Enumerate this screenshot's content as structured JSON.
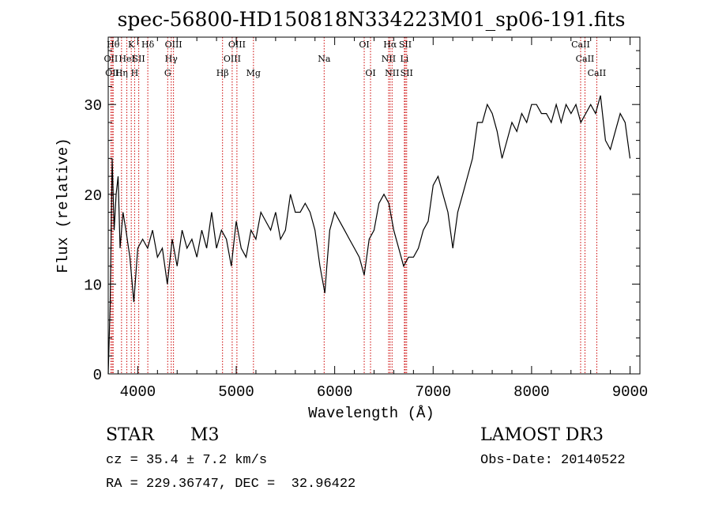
{
  "chart_data": {
    "type": "line",
    "title": "spec-56800-HD150818N334223M01_sp06-191.fits",
    "xlabel": "Wavelength (Å)",
    "ylabel": "Flux (relative)",
    "xlim": [
      3700,
      9100
    ],
    "ylim": [
      0,
      37.5
    ],
    "xticks": [
      4000,
      5000,
      6000,
      7000,
      8000,
      9000
    ],
    "yticks": [
      0,
      10,
      20,
      30
    ],
    "grid": false,
    "line_color": "#000000",
    "marker_color": "#cc0000",
    "x": [
      3700,
      3720,
      3740,
      3760,
      3780,
      3800,
      3820,
      3850,
      3880,
      3920,
      3960,
      4000,
      4050,
      4100,
      4150,
      4200,
      4250,
      4300,
      4350,
      4400,
      4450,
      4500,
      4550,
      4600,
      4650,
      4700,
      4750,
      4800,
      4850,
      4900,
      4950,
      5000,
      5050,
      5100,
      5150,
      5200,
      5250,
      5300,
      5350,
      5400,
      5450,
      5500,
      5550,
      5600,
      5650,
      5700,
      5750,
      5800,
      5850,
      5900,
      5920,
      5950,
      6000,
      6050,
      6100,
      6150,
      6200,
      6250,
      6300,
      6350,
      6400,
      6450,
      6500,
      6550,
      6600,
      6650,
      6700,
      6750,
      6800,
      6850,
      6900,
      6950,
      7000,
      7050,
      7100,
      7150,
      7200,
      7250,
      7300,
      7350,
      7400,
      7450,
      7500,
      7550,
      7600,
      7650,
      7700,
      7750,
      7800,
      7850,
      7900,
      7950,
      8000,
      8050,
      8100,
      8150,
      8200,
      8250,
      8300,
      8350,
      8400,
      8450,
      8500,
      8550,
      8600,
      8650,
      8700,
      8750,
      8800,
      8850,
      8900,
      8950,
      9000
    ],
    "y": [
      0,
      8,
      24,
      16,
      20,
      22,
      14,
      18,
      16,
      13,
      8,
      14,
      15,
      14,
      16,
      13,
      14,
      10,
      15,
      12,
      16,
      14,
      15,
      13,
      16,
      14,
      18,
      14,
      16,
      15,
      12,
      17,
      14,
      13,
      16,
      15,
      18,
      17,
      16,
      18,
      15,
      16,
      20,
      18,
      18,
      19,
      18,
      16,
      12,
      9,
      12,
      16,
      18,
      17,
      16,
      15,
      14,
      13,
      11,
      15,
      16,
      19,
      20,
      19,
      16,
      14,
      12,
      13,
      13,
      14,
      16,
      17,
      21,
      22,
      20,
      18,
      14,
      18,
      20,
      22,
      24,
      28,
      28,
      30,
      29,
      27,
      24,
      26,
      28,
      27,
      29,
      28,
      30,
      30,
      29,
      29,
      28,
      30,
      28,
      30,
      29,
      30,
      28,
      29,
      30,
      29,
      31,
      26,
      25,
      27,
      29,
      28,
      24
    ],
    "line_markers": [
      {
        "wl": 3750,
        "row": 1,
        "label": "Hθ"
      },
      {
        "wl": 3727,
        "row": 2,
        "label": "OII"
      },
      {
        "wl": 3740,
        "row": 3,
        "label": "OII"
      },
      {
        "wl": 3835,
        "row": 3,
        "label": "Hη"
      },
      {
        "wl": 3889,
        "row": 2,
        "label": "HeI"
      },
      {
        "wl": 3934,
        "row": 1,
        "label": "K"
      },
      {
        "wl": 3968,
        "row": 3,
        "label": "H"
      },
      {
        "wl": 4010,
        "row": 2,
        "label": "SII"
      },
      {
        "wl": 4102,
        "row": 1,
        "label": "Hδ"
      },
      {
        "wl": 4304,
        "row": 3,
        "label": "G"
      },
      {
        "wl": 4340,
        "row": 2,
        "label": "Hγ"
      },
      {
        "wl": 4363,
        "row": 1,
        "label": "OIII"
      },
      {
        "wl": 4861,
        "row": 3,
        "label": "Hβ"
      },
      {
        "wl": 4959,
        "row": 2,
        "label": "OIII"
      },
      {
        "wl": 5007,
        "row": 1,
        "label": "OIII"
      },
      {
        "wl": 5175,
        "row": 3,
        "label": "Mg"
      },
      {
        "wl": 5893,
        "row": 2,
        "label": "Na"
      },
      {
        "wl": 6300,
        "row": 1,
        "label": "OI"
      },
      {
        "wl": 6364,
        "row": 3,
        "label": "OI"
      },
      {
        "wl": 6548,
        "row": 2,
        "label": "NII"
      },
      {
        "wl": 6563,
        "row": 1,
        "label": "Hα"
      },
      {
        "wl": 6583,
        "row": 3,
        "label": "NII"
      },
      {
        "wl": 6708,
        "row": 2,
        "label": "Li"
      },
      {
        "wl": 6717,
        "row": 1,
        "label": "SII"
      },
      {
        "wl": 6731,
        "row": 3,
        "label": "SII"
      },
      {
        "wl": 8498,
        "row": 1,
        "label": "CaII"
      },
      {
        "wl": 8542,
        "row": 2,
        "label": "CaII"
      },
      {
        "wl": 8662,
        "row": 3,
        "label": "CaII"
      }
    ]
  },
  "info": {
    "class": "STAR",
    "subclass": "M3",
    "survey": "LAMOST DR3",
    "cz": "cz = 35.4 ± 7.2 km/s",
    "obs_date": "Obs-Date: 20140522",
    "coords": "RA = 229.36747, DEC =  32.96422"
  }
}
